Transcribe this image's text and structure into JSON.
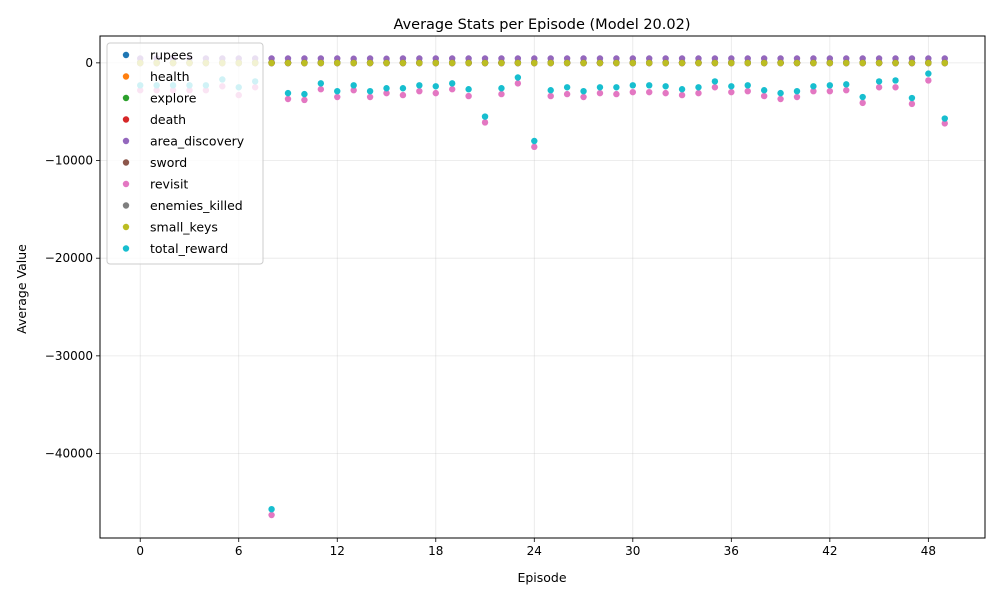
{
  "chart_data": {
    "type": "scatter",
    "title": "Average Stats per Episode (Model 20.02)",
    "xlabel": "Episode",
    "ylabel": "Average Value",
    "xlim": [
      -2.45,
      51.45
    ],
    "ylim": [
      -48650,
      2750
    ],
    "xticks": [
      0,
      6,
      12,
      18,
      24,
      30,
      36,
      42,
      48
    ],
    "xtick_labels": [
      "0",
      "6",
      "12",
      "18",
      "24",
      "30",
      "36",
      "42",
      "48"
    ],
    "yticks": [
      0,
      -10000,
      -20000,
      -30000,
      -40000
    ],
    "ytick_labels": [
      "0",
      "−10000",
      "−20000",
      "−30000",
      "−40000"
    ],
    "grid": true,
    "legend_position": "upper-left",
    "x": [
      0,
      1,
      2,
      3,
      4,
      5,
      6,
      7,
      8,
      9,
      10,
      11,
      12,
      13,
      14,
      15,
      16,
      17,
      18,
      19,
      20,
      21,
      22,
      23,
      24,
      25,
      26,
      27,
      28,
      29,
      30,
      31,
      32,
      33,
      34,
      35,
      36,
      37,
      38,
      39,
      40,
      41,
      42,
      43,
      44,
      45,
      46,
      47,
      48,
      49
    ],
    "series": [
      {
        "name": "rupees",
        "color": "#1f77b4",
        "values": [
          50,
          50,
          50,
          50,
          50,
          50,
          50,
          50,
          50,
          50,
          50,
          50,
          50,
          50,
          50,
          50,
          50,
          50,
          50,
          50,
          50,
          50,
          50,
          50,
          50,
          50,
          50,
          50,
          50,
          50,
          50,
          50,
          50,
          50,
          50,
          50,
          50,
          50,
          50,
          50,
          50,
          50,
          50,
          50,
          50,
          50,
          50,
          50,
          50,
          50
        ]
      },
      {
        "name": "health",
        "color": "#ff7f0e",
        "values": [
          5,
          5,
          5,
          5,
          5,
          5,
          5,
          5,
          5,
          5,
          5,
          5,
          5,
          5,
          5,
          5,
          5,
          5,
          5,
          5,
          5,
          5,
          5,
          5,
          5,
          5,
          5,
          5,
          5,
          5,
          5,
          5,
          5,
          5,
          5,
          5,
          5,
          5,
          5,
          5,
          5,
          5,
          5,
          5,
          5,
          5,
          5,
          5,
          5,
          5
        ]
      },
      {
        "name": "explore",
        "color": "#2ca02c",
        "values": [
          10,
          10,
          10,
          10,
          10,
          10,
          10,
          10,
          10,
          10,
          10,
          10,
          10,
          10,
          10,
          10,
          10,
          10,
          10,
          10,
          10,
          10,
          10,
          10,
          10,
          10,
          10,
          10,
          10,
          10,
          10,
          10,
          10,
          10,
          10,
          10,
          10,
          10,
          10,
          10,
          10,
          10,
          10,
          10,
          10,
          10,
          10,
          10,
          10,
          10
        ]
      },
      {
        "name": "death",
        "color": "#d62728",
        "values": [
          -20,
          -20,
          -20,
          -20,
          -20,
          -20,
          -20,
          -20,
          -20,
          -20,
          -20,
          -20,
          -20,
          -20,
          -20,
          -20,
          -20,
          -20,
          -20,
          -20,
          -20,
          -20,
          -20,
          -20,
          -20,
          -20,
          -20,
          -20,
          -20,
          -20,
          -20,
          -20,
          -20,
          -20,
          -20,
          -20,
          -20,
          -20,
          -20,
          -20,
          -20,
          -20,
          -20,
          -20,
          -20,
          -20,
          -20,
          -20,
          -20,
          -20
        ]
      },
      {
        "name": "area_discovery",
        "color": "#9467bd",
        "values": [
          450,
          450,
          450,
          450,
          450,
          450,
          450,
          450,
          450,
          450,
          450,
          450,
          450,
          420,
          450,
          420,
          450,
          450,
          450,
          450,
          450,
          450,
          450,
          450,
          450,
          450,
          450,
          450,
          450,
          450,
          450,
          450,
          450,
          450,
          450,
          450,
          450,
          450,
          450,
          450,
          450,
          450,
          450,
          450,
          450,
          450,
          450,
          450,
          450,
          450
        ]
      },
      {
        "name": "sword",
        "color": "#8c564b",
        "values": [
          0,
          0,
          0,
          0,
          0,
          0,
          0,
          0,
          0,
          0,
          0,
          0,
          0,
          0,
          0,
          0,
          0,
          0,
          0,
          0,
          0,
          0,
          0,
          0,
          0,
          0,
          0,
          0,
          0,
          0,
          0,
          0,
          0,
          0,
          0,
          0,
          0,
          0,
          0,
          0,
          0,
          0,
          0,
          0,
          0,
          0,
          0,
          0,
          0,
          0
        ]
      },
      {
        "name": "revisit",
        "color": "#e377c2",
        "values": [
          -2800,
          -2800,
          -2800,
          -2800,
          -2800,
          -2400,
          -3300,
          -2500,
          -46300,
          -3700,
          -3800,
          -2700,
          -3500,
          -2800,
          -3500,
          -3100,
          -3300,
          -2900,
          -3100,
          -2700,
          -3400,
          -6100,
          -3200,
          -2100,
          -8600,
          -3400,
          -3200,
          -3500,
          -3100,
          -3200,
          -3000,
          -3000,
          -3100,
          -3300,
          -3100,
          -2500,
          -3000,
          -2900,
          -3400,
          -3700,
          -3500,
          -2900,
          -2900,
          -2800,
          -4100,
          -2500,
          -2500,
          -4200,
          -1800,
          -6200
        ]
      },
      {
        "name": "enemies_killed",
        "color": "#7f7f7f",
        "values": [
          -30,
          -30,
          -30,
          -30,
          -30,
          -30,
          -30,
          -30,
          -30,
          -30,
          -30,
          -30,
          -30,
          -30,
          -30,
          -30,
          -30,
          -30,
          -30,
          -30,
          -30,
          -30,
          -30,
          -30,
          -30,
          -30,
          -30,
          -30,
          -30,
          -30,
          -30,
          -30,
          -30,
          -30,
          -30,
          -30,
          -30,
          -30,
          -30,
          -30,
          -30,
          -30,
          -30,
          -30,
          -30,
          -30,
          -30,
          -30,
          -30,
          -30
        ]
      },
      {
        "name": "small_keys",
        "color": "#bcbd22",
        "values": [
          -10,
          -10,
          -10,
          -10,
          -10,
          -10,
          -10,
          -10,
          -10,
          -10,
          -10,
          -10,
          -10,
          -10,
          -10,
          -10,
          -10,
          -10,
          -10,
          -10,
          -10,
          -10,
          -10,
          -10,
          -10,
          -10,
          -10,
          -10,
          -10,
          -10,
          -10,
          -10,
          -10,
          -10,
          -10,
          -10,
          -10,
          -10,
          -10,
          -10,
          -10,
          -10,
          -10,
          -10,
          -10,
          -10,
          -10,
          -10,
          -10,
          -10
        ]
      },
      {
        "name": "total_reward",
        "color": "#17becf",
        "values": [
          -2300,
          -2300,
          -2300,
          -2300,
          -2300,
          -1700,
          -2500,
          -1900,
          -45700,
          -3100,
          -3200,
          -2100,
          -2900,
          -2300,
          -2900,
          -2600,
          -2600,
          -2300,
          -2400,
          -2100,
          -2700,
          -5500,
          -2600,
          -1500,
          -8000,
          -2800,
          -2500,
          -2900,
          -2500,
          -2500,
          -2300,
          -2300,
          -2400,
          -2700,
          -2500,
          -1900,
          -2400,
          -2300,
          -2800,
          -3100,
          -2900,
          -2400,
          -2300,
          -2200,
          -3500,
          -1900,
          -1800,
          -3600,
          -1100,
          -5700
        ]
      }
    ]
  }
}
